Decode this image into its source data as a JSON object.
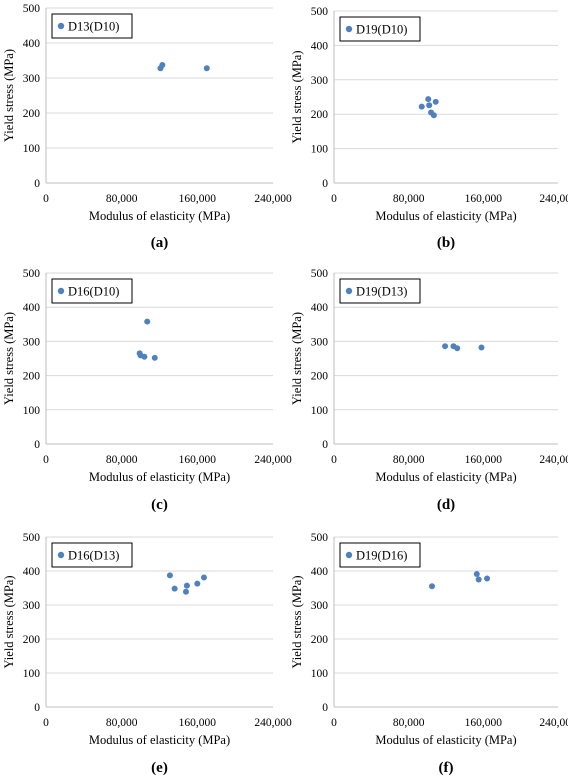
{
  "chart_data": [
    {
      "type": "scatter",
      "panel": "(a)",
      "series": [
        {
          "name": "D13(D10)",
          "points": [
            [
              121000,
              328
            ],
            [
              123000,
              337
            ],
            [
              170000,
              328
            ]
          ]
        }
      ],
      "xlabel": "Modulus of elasticity (MPa)",
      "ylabel": "Yield stress (MPa)",
      "xlim": [
        0,
        240000
      ],
      "ylim": [
        0,
        500
      ],
      "xticks": [
        0,
        80000,
        160000,
        240000
      ],
      "xtick_labels": [
        "0",
        "80,000",
        "160,000",
        "240,000"
      ],
      "yticks": [
        0,
        100,
        200,
        300,
        400,
        500
      ],
      "ytick_labels": [
        "0",
        "100",
        "200",
        "300",
        "400",
        "500"
      ],
      "grid": true,
      "legend": "top-left",
      "color": "#4f81bd"
    },
    {
      "type": "scatter",
      "panel": "(b)",
      "series": [
        {
          "name": "D19(D10)",
          "points": [
            [
              94000,
              222
            ],
            [
              101000,
              244
            ],
            [
              102000,
              226
            ],
            [
              104000,
              205
            ],
            [
              107000,
              197
            ],
            [
              109000,
              236
            ]
          ]
        }
      ],
      "xlabel": "Modulus of elasticity (MPa)",
      "ylabel": "Yield stress (MPa)",
      "xlim": [
        0,
        240000
      ],
      "ylim": [
        0,
        500
      ],
      "xticks": [
        0,
        80000,
        160000,
        240000
      ],
      "xtick_labels": [
        "0",
        "80,000",
        "160,000",
        "240,000"
      ],
      "yticks": [
        0,
        100,
        200,
        300,
        400,
        500
      ],
      "ytick_labels": [
        "0",
        "100",
        "200",
        "300",
        "400",
        "500"
      ],
      "grid": true,
      "legend": "top-left",
      "color": "#4f81bd"
    },
    {
      "type": "scatter",
      "panel": "(c)",
      "series": [
        {
          "name": "D16(D10)",
          "points": [
            [
              99000,
              265
            ],
            [
              100000,
              259
            ],
            [
              104000,
              255
            ],
            [
              107000,
              358
            ],
            [
              115000,
              252
            ]
          ]
        }
      ],
      "xlabel": "Modulus of elasticity (MPa)",
      "ylabel": "Yield stress (MPa)",
      "xlim": [
        0,
        240000
      ],
      "ylim": [
        0,
        500
      ],
      "xticks": [
        0,
        80000,
        160000,
        240000
      ],
      "xtick_labels": [
        "0",
        "80,000",
        "160,000",
        "240,000"
      ],
      "yticks": [
        0,
        100,
        200,
        300,
        400,
        500
      ],
      "ytick_labels": [
        "0",
        "100",
        "200",
        "300",
        "400",
        "500"
      ],
      "grid": true,
      "legend": "top-left",
      "color": "#4f81bd"
    },
    {
      "type": "scatter",
      "panel": "(d)",
      "series": [
        {
          "name": "D19(D13)",
          "points": [
            [
              119000,
              286
            ],
            [
              128000,
              286
            ],
            [
              132000,
              280
            ],
            [
              158000,
              282
            ]
          ]
        }
      ],
      "xlabel": "Modulus of elasticity (MPa)",
      "ylabel": "Yield stress (MPa)",
      "xlim": [
        0,
        240000
      ],
      "ylim": [
        0,
        500
      ],
      "xticks": [
        0,
        80000,
        160000,
        240000
      ],
      "xtick_labels": [
        "0",
        "80,000",
        "160,000",
        "240,000"
      ],
      "yticks": [
        0,
        100,
        200,
        300,
        400,
        500
      ],
      "ytick_labels": [
        "0",
        "100",
        "200",
        "300",
        "400",
        "500"
      ],
      "grid": true,
      "legend": "top-left",
      "color": "#4f81bd"
    },
    {
      "type": "scatter",
      "panel": "(e)",
      "series": [
        {
          "name": "D16(D13)",
          "points": [
            [
              131000,
              387
            ],
            [
              136000,
              348
            ],
            [
              148000,
              339
            ],
            [
              149000,
              357
            ],
            [
              160000,
              363
            ],
            [
              167000,
              381
            ]
          ]
        }
      ],
      "xlabel": "Modulus of elasticity (MPa)",
      "ylabel": "Yield stress (MPa)",
      "xlim": [
        0,
        240000
      ],
      "ylim": [
        0,
        500
      ],
      "xticks": [
        0,
        80000,
        160000,
        240000
      ],
      "xtick_labels": [
        "0",
        "80,000",
        "160,000",
        "240,000"
      ],
      "yticks": [
        0,
        100,
        200,
        300,
        400,
        500
      ],
      "ytick_labels": [
        "0",
        "100",
        "200",
        "300",
        "400",
        "500"
      ],
      "grid": true,
      "legend": "top-left",
      "color": "#4f81bd"
    },
    {
      "type": "scatter",
      "panel": "(f)",
      "series": [
        {
          "name": "D19(D16)",
          "points": [
            [
              105000,
              355
            ],
            [
              153000,
              391
            ],
            [
              155000,
              375
            ],
            [
              164000,
              378
            ]
          ]
        }
      ],
      "xlabel": "Modulus of elasticity (MPa)",
      "ylabel": "Yield stress (MPa)",
      "xlim": [
        0,
        240000
      ],
      "ylim": [
        0,
        500
      ],
      "xticks": [
        0,
        80000,
        160000,
        240000
      ],
      "xtick_labels": [
        "0",
        "80,000",
        "160,000",
        "240,000"
      ],
      "yticks": [
        0,
        100,
        200,
        300,
        400,
        500
      ],
      "ytick_labels": [
        "0",
        "100",
        "200",
        "300",
        "400",
        "500"
      ],
      "grid": true,
      "legend": "top-left",
      "color": "#4f81bd"
    }
  ]
}
